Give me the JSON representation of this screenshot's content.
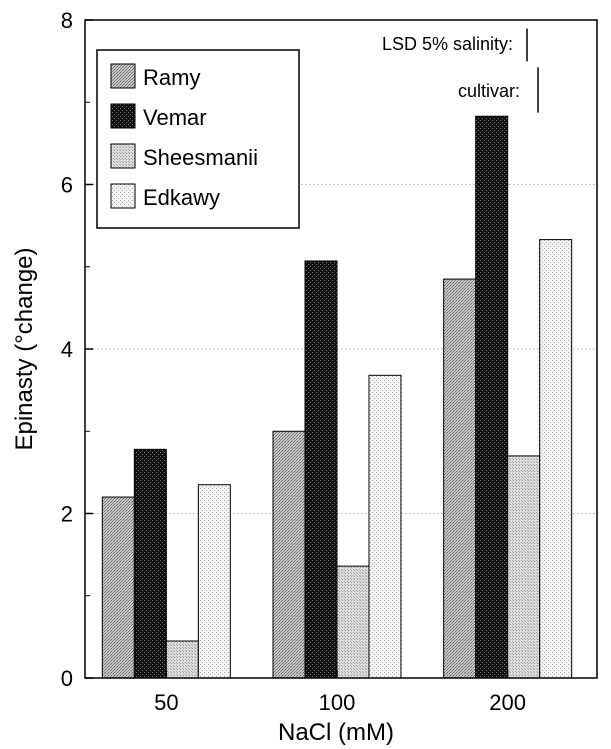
{
  "chart_data": {
    "type": "bar",
    "title": "",
    "xlabel": "NaCl (mM)",
    "ylabel": "Epinasty (°change)",
    "categories": [
      "50",
      "100",
      "200"
    ],
    "ylim": [
      0,
      8
    ],
    "yticks": [
      "0",
      "2",
      "4",
      "6",
      "8"
    ],
    "grid": "horizontal-dotted",
    "legend_position": "top-left",
    "series": [
      {
        "name": "Ramy",
        "values": [
          2.2,
          3.0,
          4.85
        ],
        "color": "#a9a9a9",
        "pattern": "medium-stipple"
      },
      {
        "name": "Vemar",
        "values": [
          2.78,
          5.07,
          6.83
        ],
        "color": "#1a1a1a",
        "pattern": "dark-checker"
      },
      {
        "name": "Sheesmanii",
        "values": [
          0.45,
          1.36,
          2.7
        ],
        "color": "#cfcfcf",
        "pattern": "light-stipple"
      },
      {
        "name": "Edkawy",
        "values": [
          2.35,
          3.68,
          5.33
        ],
        "color": "#ececec",
        "pattern": "very-light-stipple"
      }
    ],
    "annotations": [
      {
        "label": "LSD 5% salinity:",
        "value": 0.4
      },
      {
        "label": "cultivar:",
        "value": 0.55
      }
    ]
  }
}
